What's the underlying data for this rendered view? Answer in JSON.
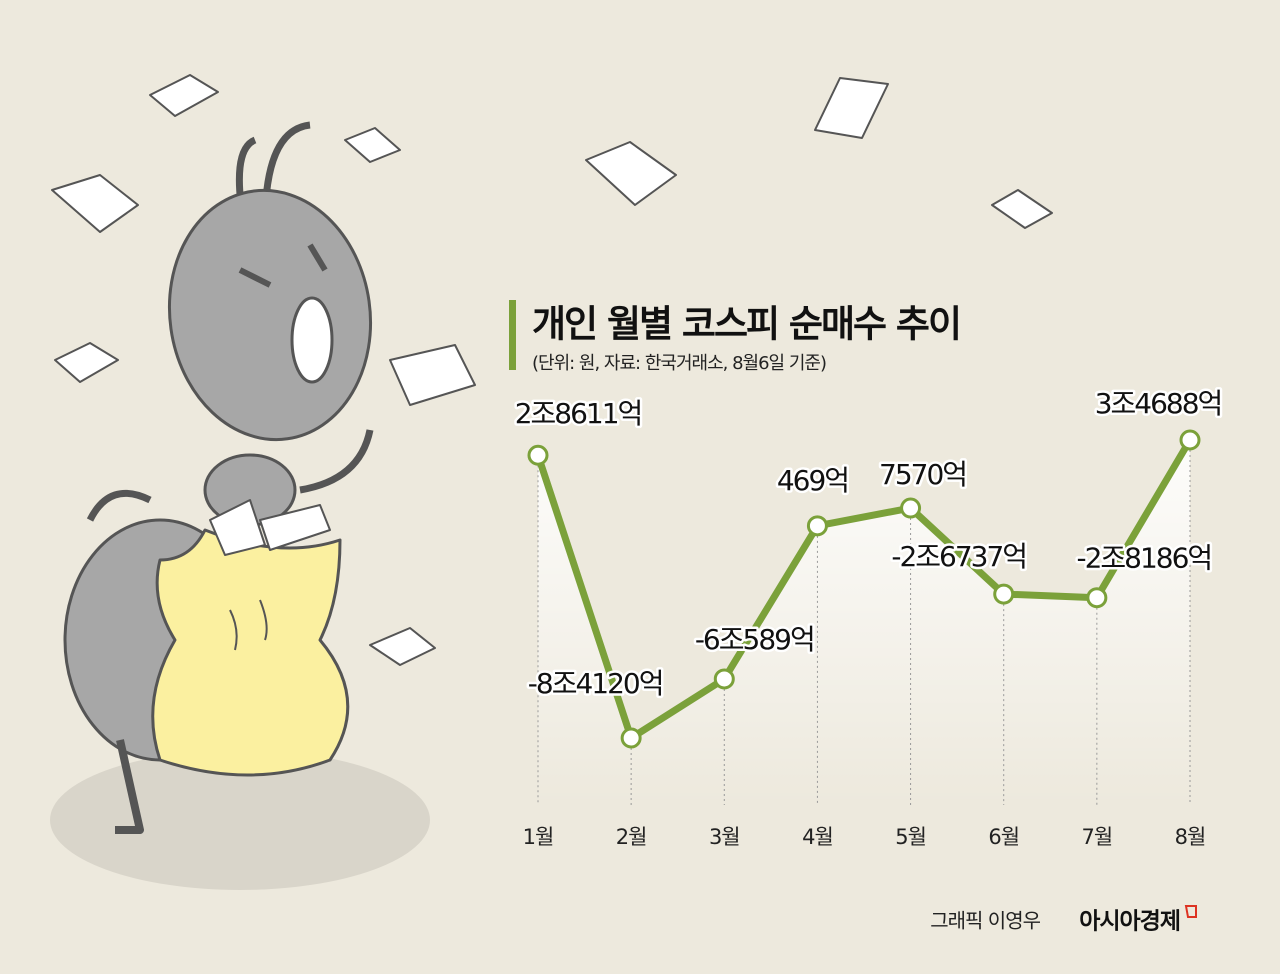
{
  "chart_data": {
    "type": "line",
    "title": "개인 월별 코스피 순매수 추이",
    "subtitle": "(단위: 원, 자료: 한국거래소, 8월6일 기준)",
    "categories": [
      "1월",
      "2월",
      "3월",
      "4월",
      "5월",
      "6월",
      "7월",
      "8월"
    ],
    "values": [
      28611,
      -84120,
      -60589,
      469,
      7570,
      -26737,
      -28186,
      34688
    ],
    "value_labels": [
      "2조8611억",
      "-8조4120억",
      "-6조589억",
      "469억",
      "7570억",
      "-2조6737억",
      "-2조8186억",
      "3조4688억"
    ],
    "color": "#7ba13a"
  },
  "credit": "그래픽 이영우",
  "publisher": "아시아경제"
}
